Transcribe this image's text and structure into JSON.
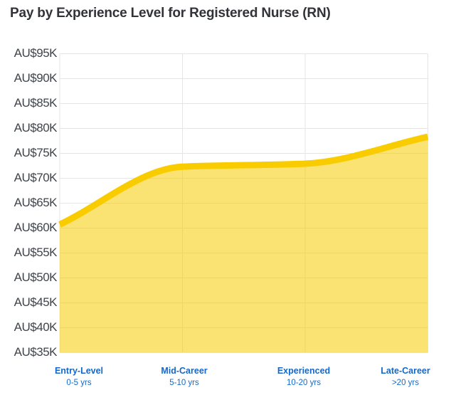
{
  "title": "Pay by Experience Level for Registered Nurse (RN)",
  "chart_data": {
    "type": "area",
    "title": "Pay by Experience Level for Registered Nurse (RN)",
    "x_categories": [
      {
        "label": "Entry-Level",
        "sublabel": "0-5 yrs"
      },
      {
        "label": "Mid-Career",
        "sublabel": "5-10 yrs"
      },
      {
        "label": "Experienced",
        "sublabel": "10-20 yrs"
      },
      {
        "label": "Late-Career",
        "sublabel": ">20 yrs"
      }
    ],
    "series": [
      {
        "name": "Pay",
        "values_aud": [
          60700,
          72300,
          72900,
          78300
        ]
      }
    ],
    "y_axis": {
      "currency_prefix": "AU$",
      "min": 35000,
      "max": 95000,
      "tick_step": 5000,
      "tick_values": [
        35000,
        40000,
        45000,
        50000,
        55000,
        60000,
        65000,
        70000,
        75000,
        80000,
        85000,
        90000,
        95000
      ],
      "tick_labels": [
        "AU$35K",
        "AU$40K",
        "AU$45K",
        "AU$50K",
        "AU$55K",
        "AU$60K",
        "AU$65K",
        "AU$70K",
        "AU$75K",
        "AU$80K",
        "AU$85K",
        "AU$90K",
        "AU$95K"
      ]
    },
    "grid": true,
    "legend": "none",
    "colors": {
      "line": "#F9CC00",
      "fill_rgba": "rgba(248,204,0,0.55)",
      "grid_line": "#E5E5E5",
      "y_label_text": "#3F444B",
      "x_label_text": "#1568C7",
      "title_text": "#313338",
      "background": "#FFFFFF"
    }
  }
}
